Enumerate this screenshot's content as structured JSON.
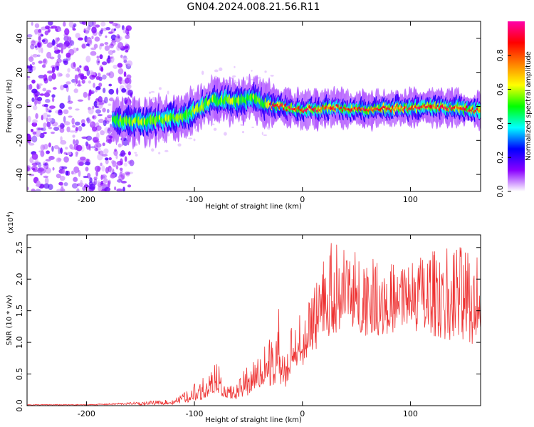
{
  "figure_title": "GN04.2024.008.21.56.R11",
  "chart_data": [
    {
      "type": "heatmap",
      "title": "GN04.2024.008.21.56.R11",
      "xlabel": "Height of straight line (km)",
      "ylabel": "Frequency (Hz)",
      "xlim": [
        -255,
        165
      ],
      "ylim": [
        -50,
        50
      ],
      "xticks": [
        -200,
        -100,
        0,
        100
      ],
      "xtick_labels": [
        "-200",
        "-100",
        "0",
        "100"
      ],
      "yticks": [
        -40,
        -20,
        0,
        20,
        40
      ],
      "ytick_labels": [
        "-40",
        "-20",
        "0",
        "20",
        "40"
      ],
      "colorbar": {
        "label": "Normalized spectral amplitude",
        "range": [
          0,
          1
        ],
        "ticks": [
          0.0,
          0.2,
          0.4,
          0.6,
          0.8
        ],
        "tick_labels": [
          "0.0",
          "0.2",
          "0.4",
          "0.6",
          "0.8"
        ],
        "colormap": [
          "#ffffff",
          "#8a00ff",
          "#0000ff",
          "#00ffff",
          "#00ff00",
          "#ffff00",
          "#ff8000",
          "#ff0000",
          "#ff00aa"
        ]
      },
      "ridge": {
        "height_km": [
          -255,
          -200,
          -160,
          -130,
          -110,
          -95,
          -80,
          -60,
          -45,
          -35,
          -20,
          0,
          20,
          40,
          60,
          80,
          100,
          120,
          140,
          165
        ],
        "frequency_hz": [
          -8,
          -8,
          -9,
          -8,
          -6,
          -1,
          4,
          3,
          5,
          1,
          0,
          -2,
          -1,
          -1,
          -2,
          -1,
          -1,
          0,
          -1,
          -2
        ]
      },
      "grid": false
    },
    {
      "type": "line",
      "title": "",
      "xlabel": "Height of straight line (km)",
      "ylabel": "SNR (10 * v/v)",
      "y_scale_label": "(x10",
      "y_scale_exp": "4",
      "y_scale_close": ")",
      "xlim": [
        -255,
        165
      ],
      "ylim": [
        0,
        2.7
      ],
      "xticks": [
        -200,
        -100,
        0,
        100
      ],
      "xtick_labels": [
        "-200",
        "-100",
        "0",
        "100"
      ],
      "yticks": [
        0.0,
        0.5,
        1.0,
        1.5,
        2.0,
        2.5
      ],
      "ytick_labels": [
        "0.0",
        "0.5",
        "1.0",
        "1.5",
        "2.0",
        "2.5"
      ],
      "color": "#ee3333",
      "envelope": {
        "x": [
          -255,
          -200,
          -160,
          -120,
          -105,
          -90,
          -80,
          -70,
          -60,
          -50,
          -40,
          -30,
          -22,
          -15,
          -10,
          0,
          10,
          20,
          40,
          60,
          80,
          100,
          120,
          140,
          155,
          165
        ],
        "upper": [
          0.02,
          0.02,
          0.05,
          0.1,
          0.25,
          0.55,
          0.75,
          0.3,
          0.35,
          0.7,
          0.8,
          1.1,
          1.65,
          0.8,
          1.3,
          1.5,
          1.75,
          2.6,
          2.55,
          2.35,
          2.25,
          2.3,
          2.45,
          2.55,
          2.5,
          2.3
        ],
        "lower": [
          0.0,
          0.0,
          0.0,
          0.02,
          0.05,
          0.1,
          0.2,
          0.1,
          0.1,
          0.15,
          0.2,
          0.3,
          0.3,
          0.3,
          0.5,
          0.6,
          0.8,
          1.0,
          1.2,
          1.1,
          1.1,
          1.2,
          1.1,
          1.0,
          0.9,
          1.1
        ]
      },
      "grid": false
    }
  ]
}
